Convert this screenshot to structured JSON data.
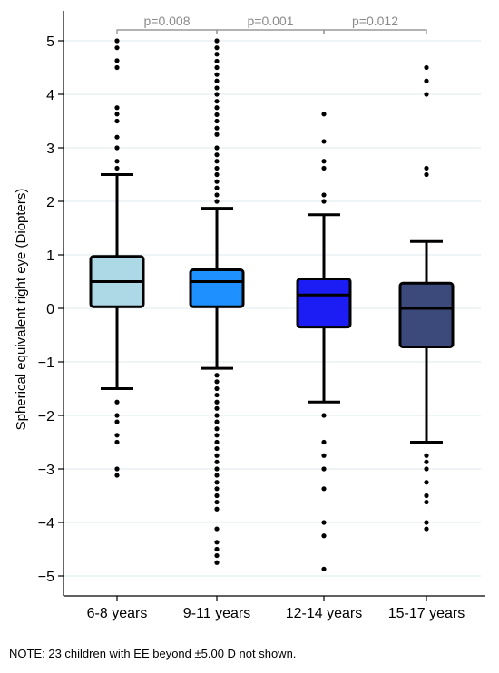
{
  "note": "NOTE: 23 children with EE beyond ±5.00 D not shown.",
  "chart_data": {
    "type": "box",
    "ylabel": "Spherical equivalent right eye (Diopters)",
    "xlabel": "",
    "ylim": [
      -5.3,
      5.3
    ],
    "yticks": [
      {
        "value": 5,
        "label": "5"
      },
      {
        "value": 4,
        "label": "4"
      },
      {
        "value": 3,
        "label": "3"
      },
      {
        "value": 2,
        "label": "2"
      },
      {
        "value": 1,
        "label": "1"
      },
      {
        "value": 0,
        "label": "0"
      },
      {
        "value": -1,
        "label": "−1"
      },
      {
        "value": -2,
        "label": "−2"
      },
      {
        "value": -3,
        "label": "−3"
      },
      {
        "value": -4,
        "label": "−4"
      },
      {
        "value": -5,
        "label": "−5"
      }
    ],
    "grid": true,
    "categories": [
      "6-8 years",
      "9-11 years",
      "12-14 years",
      "15-17 years"
    ],
    "boxes": [
      {
        "name": "6-8 years",
        "color": "#add8e6",
        "whisker_low": -1.5,
        "q1": 0.03,
        "median": 0.5,
        "q3": 0.97,
        "whisker_high": 2.5,
        "outliers": [
          5.0,
          4.87,
          4.63,
          4.5,
          3.75,
          3.63,
          3.5,
          3.2,
          3.0,
          2.75,
          2.62,
          -1.75,
          -2.0,
          -2.12,
          -2.37,
          -2.5,
          -3.0,
          -3.12
        ]
      },
      {
        "name": "9-11 years",
        "color": "#1e90ff",
        "whisker_low": -1.12,
        "q1": 0.03,
        "median": 0.5,
        "q3": 0.72,
        "whisker_high": 1.87,
        "outliers": [
          5.0,
          4.87,
          4.75,
          4.62,
          4.5,
          4.37,
          4.25,
          4.12,
          4.0,
          3.87,
          3.75,
          3.62,
          3.5,
          3.37,
          3.25,
          3.0,
          2.87,
          2.75,
          2.62,
          2.5,
          2.37,
          2.25,
          2.12,
          2.0,
          -1.25,
          -1.37,
          -1.5,
          -1.62,
          -1.75,
          -1.87,
          -2.0,
          -2.12,
          -2.25,
          -2.37,
          -2.5,
          -2.62,
          -2.75,
          -2.87,
          -3.0,
          -3.12,
          -3.25,
          -3.37,
          -3.5,
          -3.62,
          -3.75,
          -4.12,
          -4.37,
          -4.5,
          -4.62,
          -4.75
        ]
      },
      {
        "name": "12-14 years",
        "color": "#1c1cf5",
        "whisker_low": -1.75,
        "q1": -0.35,
        "median": 0.25,
        "q3": 0.55,
        "whisker_high": 1.75,
        "outliers": [
          3.63,
          3.12,
          2.75,
          2.62,
          2.12,
          2.0,
          -2.0,
          -2.5,
          -2.75,
          -3.0,
          -3.37,
          -4.0,
          -4.25,
          -4.87
        ]
      },
      {
        "name": "15-17 years",
        "color": "#3b4a7a",
        "whisker_low": -2.5,
        "q1": -0.72,
        "median": 0.0,
        "q3": 0.47,
        "whisker_high": 1.25,
        "outliers": [
          4.5,
          4.25,
          4.0,
          2.62,
          2.5,
          -2.75,
          -2.87,
          -3.0,
          -3.25,
          -3.5,
          -3.62,
          -4.0,
          -4.12
        ]
      }
    ],
    "comparisons": [
      {
        "from": 0,
        "to": 1,
        "label": "p=0.008"
      },
      {
        "from": 1,
        "to": 2,
        "label": "p=0.001"
      },
      {
        "from": 2,
        "to": 3,
        "label": "p=0.012"
      }
    ],
    "colors": {
      "grid": "#dfe8ec",
      "bracket": "#9a9a9a"
    }
  }
}
